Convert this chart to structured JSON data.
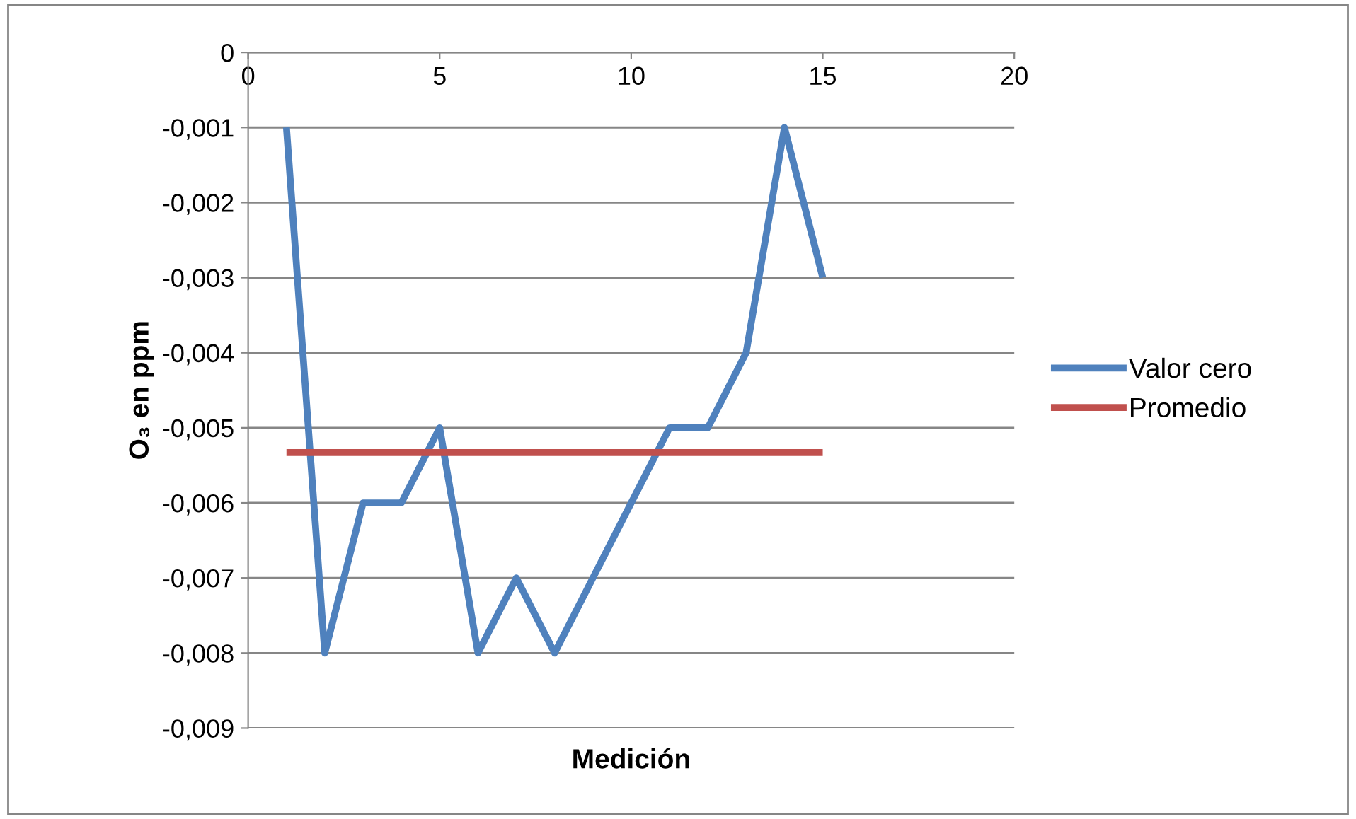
{
  "chart_data": {
    "type": "line",
    "xlabel": "Medición",
    "ylabel": "O₃ en ppm",
    "xlim": [
      0,
      20
    ],
    "xticks": [
      0,
      5,
      10,
      15,
      20
    ],
    "ylim": [
      -0.009,
      0
    ],
    "yticks": [
      {
        "value": 0,
        "label": "0"
      },
      {
        "value": -0.001,
        "label": "-0,001"
      },
      {
        "value": -0.002,
        "label": "-0,002"
      },
      {
        "value": -0.003,
        "label": "-0,003"
      },
      {
        "value": -0.004,
        "label": "-0,004"
      },
      {
        "value": -0.005,
        "label": "-0,005"
      },
      {
        "value": -0.006,
        "label": "-0,006"
      },
      {
        "value": -0.007,
        "label": "-0,007"
      },
      {
        "value": -0.008,
        "label": "-0,008"
      },
      {
        "value": -0.009,
        "label": "-0,009"
      }
    ],
    "grid": "y",
    "legend": "right",
    "marker": "none",
    "line_style": "solid",
    "series": [
      {
        "name": "Valor cero",
        "color": "#4f81bd",
        "x": [
          1,
          2,
          3,
          4,
          5,
          6,
          7,
          8,
          9,
          10,
          11,
          12,
          13,
          14,
          15
        ],
        "values": [
          -0.001,
          -0.008,
          -0.006,
          -0.006,
          -0.005,
          -0.008,
          -0.007,
          -0.008,
          -0.007,
          -0.006,
          -0.005,
          -0.005,
          -0.004,
          -0.001,
          -0.003
        ]
      },
      {
        "name": "Promedio",
        "color": "#c0504d",
        "x": [
          1,
          2,
          3,
          4,
          5,
          6,
          7,
          8,
          9,
          10,
          11,
          12,
          13,
          14,
          15
        ],
        "values": [
          -0.00533,
          -0.00533,
          -0.00533,
          -0.00533,
          -0.00533,
          -0.00533,
          -0.00533,
          -0.00533,
          -0.00533,
          -0.00533,
          -0.00533,
          -0.00533,
          -0.00533,
          -0.00533,
          -0.00533
        ]
      }
    ]
  }
}
